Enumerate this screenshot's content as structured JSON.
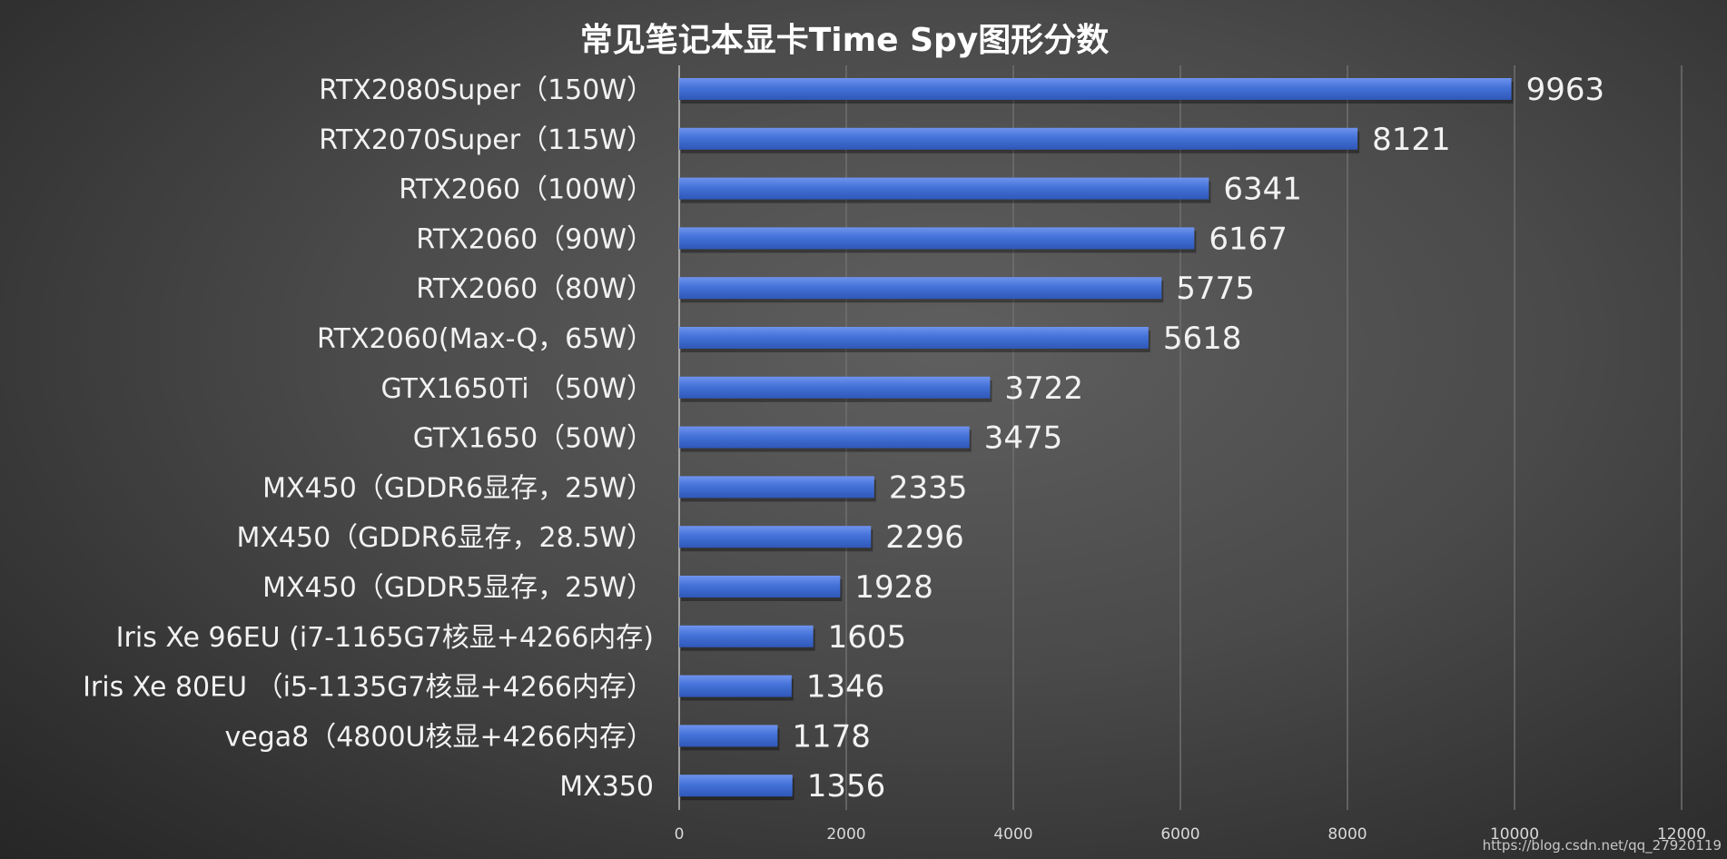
{
  "watermark": "https://blog.csdn.net/qq_27920119",
  "colors": {
    "bar_top": "#6f93ee",
    "bar_mid": "#4472d8",
    "bar_bottom": "#2f58b8"
  },
  "chart_data": {
    "type": "bar",
    "orientation": "horizontal",
    "title": "常见笔记本显卡Time Spy图形分数",
    "xlabel": "",
    "ylabel": "",
    "xlim": [
      0,
      12000
    ],
    "xticks": [
      0,
      2000,
      4000,
      6000,
      8000,
      10000,
      12000
    ],
    "grid": true,
    "legend": "none",
    "categories": [
      "RTX2080Super（150W）",
      "RTX2070Super（115W）",
      "RTX2060（100W）",
      "RTX2060（90W）",
      "RTX2060（80W）",
      "RTX2060(Max-Q，65W）",
      "GTX1650Ti （50W）",
      "GTX1650（50W）",
      "MX450（GDDR6显存，25W）",
      "MX450（GDDR6显存，28.5W）",
      "MX450（GDDR5显存，25W）",
      "Iris Xe 96EU (i7-1165G7核显+4266内存)",
      "Iris Xe 80EU （i5-1135G7核显+4266内存）",
      "vega8（4800U核显+4266内存）",
      "MX350"
    ],
    "values": [
      9963,
      8121,
      6341,
      6167,
      5775,
      5618,
      3722,
      3475,
      2335,
      2296,
      1928,
      1605,
      1346,
      1178,
      1356
    ]
  }
}
